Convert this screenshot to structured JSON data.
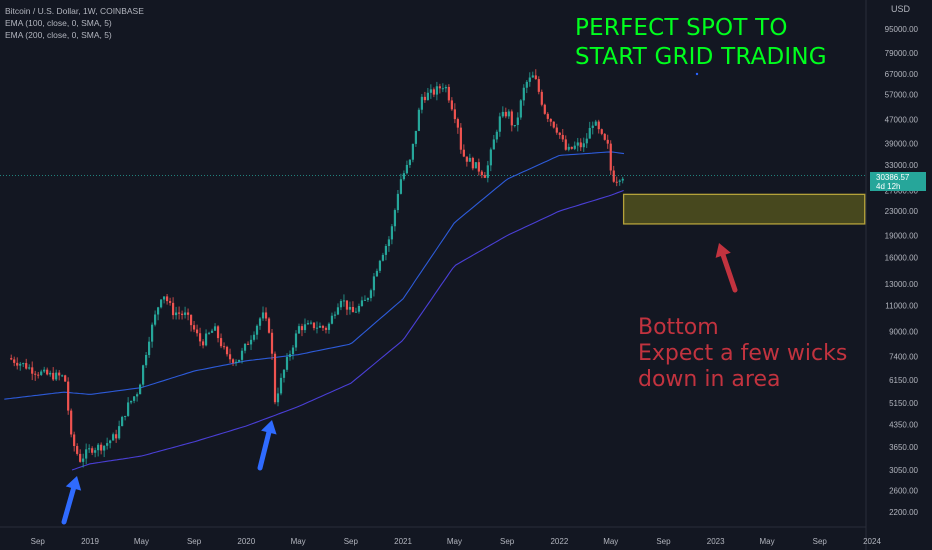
{
  "legend": {
    "symbol": "Bitcoin / U.S. Dollar, 1W, COINBASE",
    "ema100": "EMA (100, close, 0, SMA, 5)",
    "ema200": "EMA (200, close, 0, SMA, 5)"
  },
  "currency": "USD",
  "current_price": {
    "value": "30386.57",
    "countdown": "4d 12h",
    "color": "#26a69a"
  },
  "annotations": {
    "headline_line1": "PERFECT SPOT TO",
    "headline_line2": "START GRID TRADING",
    "headline_color": "#00ff1e",
    "note_line1": "Bottom",
    "note_line2": "Expect a few wicks",
    "note_line3": "down in area",
    "note_color": "#c2333f"
  },
  "colors": {
    "background": "#131722",
    "up_candle": "#26a69a",
    "down_candle": "#ef5350",
    "ema_100": "#2d5bd9",
    "ema_200": "#4a3fd6",
    "zone_fill": "#5a5a1e",
    "zone_border": "#b5a23a",
    "arrow_blue": "#2f6bff",
    "arrow_red": "#c2333f"
  },
  "chart_data": {
    "type": "candlestick",
    "title": "Bitcoin / U.S. Dollar, 1W, COINBASE",
    "y_scale": "log",
    "x_ticks": [
      "Sep",
      "2019",
      "May",
      "Sep",
      "2020",
      "May",
      "Sep",
      "2021",
      "May",
      "Sep",
      "2022",
      "May",
      "Sep",
      "2023",
      "May",
      "Sep",
      "2024"
    ],
    "x_tick_dates": [
      "2018-09-01",
      "2019-01-01",
      "2019-05-01",
      "2019-09-01",
      "2020-01-01",
      "2020-05-01",
      "2020-09-01",
      "2021-01-01",
      "2021-05-01",
      "2021-09-01",
      "2022-01-01",
      "2022-05-01",
      "2022-09-01",
      "2023-01-01",
      "2023-05-01",
      "2023-09-01",
      "2024-01-01"
    ],
    "y_ticks": [
      2200,
      2600,
      3050,
      3650,
      4350,
      5150,
      6150,
      7400,
      9000,
      11000,
      13000,
      16000,
      19000,
      23000,
      27000,
      33000,
      39000,
      47000,
      57000,
      67000,
      79000,
      95000
    ],
    "y_tick_labels": [
      "2200.00",
      "2600.00",
      "3050.00",
      "3650.00",
      "4350.00",
      "5150.00",
      "6150.00",
      "7400.00",
      "9000.00",
      "11000.00",
      "13000.00",
      "16000.00",
      "19000.00",
      "23000.00",
      "27000.00",
      "33000.00",
      "39000.00",
      "47000.00",
      "57000.00",
      "67000.00",
      "79000.00",
      "95000.00"
    ],
    "close_anchors": [
      [
        "2018-07-01",
        7300
      ],
      [
        "2018-08-01",
        7000
      ],
      [
        "2018-09-01",
        6600
      ],
      [
        "2018-10-01",
        6400
      ],
      [
        "2018-11-10",
        6300
      ],
      [
        "2018-11-25",
        3900
      ],
      [
        "2018-12-15",
        3300
      ],
      [
        "2019-01-10",
        3600
      ],
      [
        "2019-02-10",
        3700
      ],
      [
        "2019-03-10",
        4000
      ],
      [
        "2019-04-05",
        5000
      ],
      [
        "2019-05-01",
        5700
      ],
      [
        "2019-05-25",
        8500
      ],
      [
        "2019-06-26",
        12300
      ],
      [
        "2019-07-20",
        10500
      ],
      [
        "2019-08-20",
        10200
      ],
      [
        "2019-09-25",
        8200
      ],
      [
        "2019-10-25",
        9200
      ],
      [
        "2019-11-25",
        7300
      ],
      [
        "2019-12-20",
        7200
      ],
      [
        "2020-01-20",
        8700
      ],
      [
        "2020-02-14",
        10300
      ],
      [
        "2020-03-05",
        8900
      ],
      [
        "2020-03-14",
        5200
      ],
      [
        "2020-04-10",
        7000
      ],
      [
        "2020-05-10",
        9300
      ],
      [
        "2020-06-15",
        9400
      ],
      [
        "2020-07-15",
        9200
      ],
      [
        "2020-08-15",
        11800
      ],
      [
        "2020-09-10",
        10300
      ],
      [
        "2020-10-15",
        11500
      ],
      [
        "2020-11-15",
        16000
      ],
      [
        "2020-12-10",
        19000
      ],
      [
        "2020-12-31",
        29000
      ],
      [
        "2021-01-25",
        34000
      ],
      [
        "2021-02-20",
        56000
      ],
      [
        "2021-03-20",
        58000
      ],
      [
        "2021-04-15",
        62000
      ],
      [
        "2021-05-15",
        46000
      ],
      [
        "2021-05-25",
        36000
      ],
      [
        "2021-06-22",
        33000
      ],
      [
        "2021-07-20",
        30500
      ],
      [
        "2021-08-20",
        47000
      ],
      [
        "2021-09-10",
        50000
      ],
      [
        "2021-09-25",
        43000
      ],
      [
        "2021-10-20",
        62000
      ],
      [
        "2021-11-10",
        66000
      ],
      [
        "2021-12-05",
        50000
      ],
      [
        "2022-01-05",
        43000
      ],
      [
        "2022-01-25",
        36500
      ],
      [
        "2022-02-20",
        38500
      ],
      [
        "2022-03-05",
        38000
      ],
      [
        "2022-03-28",
        46500
      ],
      [
        "2022-04-20",
        40000
      ],
      [
        "2022-05-01",
        38000
      ],
      [
        "2022-05-10",
        30000
      ],
      [
        "2022-05-20",
        29500
      ],
      [
        "2022-05-31",
        30386
      ]
    ],
    "ema100_anchors": [
      [
        "2018-06-15",
        5300
      ],
      [
        "2018-11-01",
        5600
      ],
      [
        "2019-01-01",
        5500
      ],
      [
        "2019-05-01",
        5800
      ],
      [
        "2019-09-01",
        6600
      ],
      [
        "2020-01-01",
        7150
      ],
      [
        "2020-05-01",
        7500
      ],
      [
        "2020-09-01",
        8150
      ],
      [
        "2021-01-01",
        11600
      ],
      [
        "2021-05-01",
        21000
      ],
      [
        "2021-09-01",
        29500
      ],
      [
        "2022-01-01",
        35500
      ],
      [
        "2022-05-01",
        36500
      ],
      [
        "2022-06-01",
        36000
      ]
    ],
    "ema200_anchors": [
      [
        "2018-11-20",
        3050
      ],
      [
        "2019-01-01",
        3200
      ],
      [
        "2019-05-01",
        3400
      ],
      [
        "2019-09-01",
        3800
      ],
      [
        "2020-01-01",
        4300
      ],
      [
        "2020-05-01",
        5000
      ],
      [
        "2020-09-01",
        6000
      ],
      [
        "2021-01-01",
        8400
      ],
      [
        "2021-05-01",
        15000
      ],
      [
        "2021-09-01",
        19000
      ],
      [
        "2022-01-01",
        23000
      ],
      [
        "2022-05-01",
        26000
      ],
      [
        "2022-05-31",
        27000
      ]
    ],
    "support_zone": {
      "x_start": "2022-05-31",
      "x_end": "2023-12-15",
      "y_low": 20800,
      "y_high": 26200
    },
    "current_price": 30386.57
  }
}
